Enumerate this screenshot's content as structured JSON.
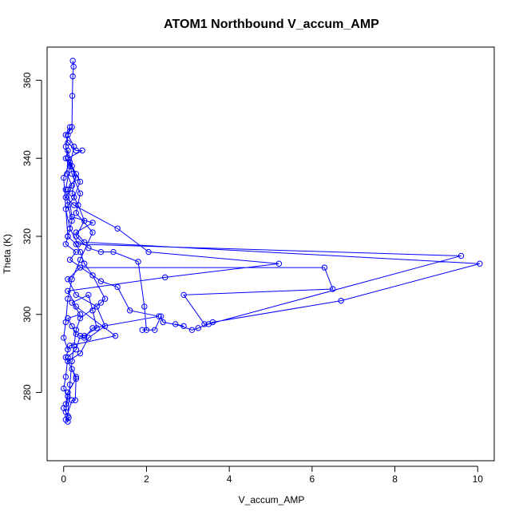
{
  "chart_data": {
    "type": "line",
    "title": "ATOM1 Northbound V_accum_AMP",
    "xlabel": "V_accum_AMP",
    "ylabel": "Theta (K)",
    "xlim": [
      -0.4,
      10.4
    ],
    "ylim": [
      262.5,
      368.5
    ],
    "x_ticks": [
      0,
      2,
      4,
      6,
      8,
      10
    ],
    "y_ticks": [
      280,
      300,
      320,
      340,
      360
    ],
    "x_tick_labels": [
      "0",
      "2",
      "4",
      "6",
      "8",
      "10"
    ],
    "y_tick_labels": [
      "280",
      "300",
      "320",
      "340",
      "360"
    ],
    "grid": false,
    "legend": "none",
    "marker": "open-circle",
    "series_color": "#0000ff",
    "series": [
      {
        "values": [
          [
            0.22,
            365.0
          ],
          [
            0.24,
            363.5
          ],
          [
            0.22,
            361.0
          ],
          [
            0.21,
            356.0
          ],
          [
            0.2,
            348.0
          ],
          [
            0.15,
            347.0
          ],
          [
            0.05,
            346.0
          ],
          [
            0.1,
            344.0
          ],
          [
            0.3,
            342.0
          ],
          [
            0.45,
            342.0
          ],
          [
            0.1,
            340.0
          ],
          [
            0.08,
            336.0
          ],
          [
            0.2,
            333.0
          ],
          [
            0.05,
            330.0
          ],
          [
            0.25,
            328.0
          ],
          [
            1.3,
            322.0
          ],
          [
            2.05,
            316.0
          ],
          [
            5.2,
            313.0
          ],
          [
            2.45,
            309.5
          ],
          [
            0.1,
            306.0
          ],
          [
            0.3,
            302.0
          ],
          [
            1.25,
            294.5
          ],
          [
            0.15,
            292.0
          ],
          [
            0.05,
            289.0
          ],
          [
            0.2,
            286.0
          ],
          [
            0.3,
            283.5
          ],
          [
            0.1,
            280.0
          ],
          [
            0.05,
            277.0
          ],
          [
            0.0,
            276.0
          ],
          [
            0.12,
            273.5
          ],
          [
            0.1,
            272.5
          ],
          [
            0.05,
            273.0
          ],
          [
            0.2,
            278.0
          ],
          [
            0.28,
            278.0
          ],
          [
            0.3,
            284.0
          ],
          [
            0.1,
            288.0
          ],
          [
            0.4,
            290.0
          ],
          [
            0.6,
            294.0
          ],
          [
            1.0,
            297.0
          ],
          [
            0.8,
            302.0
          ],
          [
            0.3,
            305.0
          ],
          [
            0.1,
            309.0
          ],
          [
            0.4,
            312.0
          ],
          [
            6.3,
            312.0
          ],
          [
            6.5,
            306.5
          ],
          [
            2.9,
            305.0
          ],
          [
            3.4,
            297.5
          ],
          [
            3.5,
            297.5
          ],
          [
            9.6,
            315.0
          ],
          [
            0.35,
            318.0
          ],
          [
            0.15,
            322.0
          ],
          [
            0.05,
            327.0
          ],
          [
            0.25,
            330.0
          ],
          [
            0.4,
            334.0
          ],
          [
            0.2,
            338.0
          ],
          [
            0.1,
            342.0
          ],
          [
            0.05,
            340.0
          ],
          [
            0.3,
            336.0
          ],
          [
            0.2,
            331.0
          ],
          [
            0.35,
            328.0
          ],
          [
            0.5,
            324.0
          ],
          [
            0.3,
            320.0
          ],
          [
            0.6,
            317.0
          ],
          [
            0.9,
            316.0
          ],
          [
            1.2,
            316.0
          ],
          [
            1.8,
            313.5
          ],
          [
            1.95,
            302.0
          ],
          [
            2.0,
            296.0
          ],
          [
            1.9,
            296.0
          ],
          [
            2.2,
            296.0
          ],
          [
            2.35,
            299.5
          ],
          [
            2.4,
            298.0
          ],
          [
            2.9,
            297.0
          ],
          [
            2.7,
            297.5
          ],
          [
            3.1,
            296.0
          ],
          [
            3.25,
            296.5
          ],
          [
            3.6,
            298.0
          ],
          [
            6.7,
            303.5
          ],
          [
            10.05,
            313.0
          ],
          [
            0.5,
            318.5
          ],
          [
            0.3,
            321.0
          ],
          [
            0.7,
            323.5
          ],
          [
            0.2,
            325.0
          ],
          [
            0.1,
            332.0
          ],
          [
            0.3,
            335.0
          ],
          [
            0.15,
            339.0
          ],
          [
            0.0,
            335.0
          ],
          [
            0.1,
            320.0
          ],
          [
            0.05,
            318.0
          ],
          [
            0.3,
            316.0
          ],
          [
            0.15,
            314.0
          ],
          [
            0.9,
            308.5
          ],
          [
            1.3,
            307.0
          ],
          [
            1.6,
            301.0
          ],
          [
            2.3,
            299.5
          ],
          [
            0.7,
            296.5
          ],
          [
            0.5,
            294.0
          ],
          [
            0.3,
            295.0
          ],
          [
            0.2,
            297.0
          ],
          [
            0.1,
            299.0
          ],
          [
            0.4,
            300.0
          ],
          [
            0.2,
            303.0
          ],
          [
            0.6,
            305.0
          ],
          [
            0.7,
            301.0
          ],
          [
            0.8,
            296.5
          ],
          [
            0.5,
            294.5
          ],
          [
            0.4,
            294.5
          ],
          [
            0.3,
            291.0
          ],
          [
            0.1,
            289.0
          ],
          [
            0.05,
            284.0
          ],
          [
            0.0,
            281.0
          ],
          [
            0.1,
            279.0
          ],
          [
            0.05,
            275.0
          ],
          [
            0.1,
            274.0
          ],
          [
            0.15,
            282.0
          ],
          [
            0.2,
            288.0
          ],
          [
            0.25,
            292.0
          ],
          [
            0.3,
            296.0
          ],
          [
            0.4,
            299.0
          ],
          [
            0.9,
            303.0
          ],
          [
            1.0,
            304.0
          ],
          [
            0.7,
            310.0
          ],
          [
            0.5,
            313.0
          ],
          [
            0.4,
            316.0
          ],
          [
            0.3,
            318.0
          ],
          [
            0.1,
            320.0
          ],
          [
            0.2,
            324.0
          ],
          [
            0.1,
            328.0
          ],
          [
            0.05,
            332.0
          ],
          [
            0.15,
            338.0
          ],
          [
            0.25,
            343.0
          ],
          [
            0.1,
            346.0
          ],
          [
            0.15,
            348.0
          ],
          [
            0.05,
            343.0
          ],
          [
            0.2,
            336.0
          ],
          [
            0.4,
            331.0
          ],
          [
            0.3,
            326.0
          ],
          [
            0.7,
            321.0
          ],
          [
            0.4,
            314.0
          ],
          [
            0.2,
            309.0
          ],
          [
            0.1,
            304.0
          ],
          [
            0.05,
            298.0
          ],
          [
            0.0,
            294.0
          ],
          [
            0.1,
            291.0
          ]
        ]
      }
    ]
  }
}
